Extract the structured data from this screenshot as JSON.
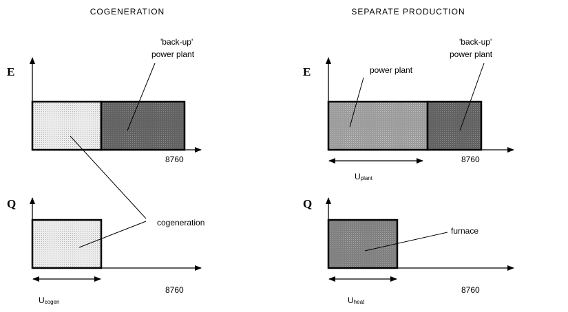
{
  "left": {
    "title": "COGENERATION",
    "top_axis": "E",
    "bottom_axis": "Q",
    "backup_line1": "'back-up'",
    "backup_line2": "power plant",
    "cogeneration": "cogeneration",
    "top_end": "8760",
    "bottom_end": "8760",
    "u_main": "U",
    "u_sub": "cogen"
  },
  "right": {
    "title": "SEPARATE PRODUCTION",
    "top_axis": "E",
    "bottom_axis": "Q",
    "power_plant": "power plant",
    "backup_line1": "'back-up'",
    "backup_line2": "power plant",
    "furnace": "furnace",
    "top_end": "8760",
    "bottom_end": "8760",
    "u_plant_main": "U",
    "u_plant_sub": "plant",
    "u_heat_main": "U",
    "u_heat_sub": "heat"
  }
}
